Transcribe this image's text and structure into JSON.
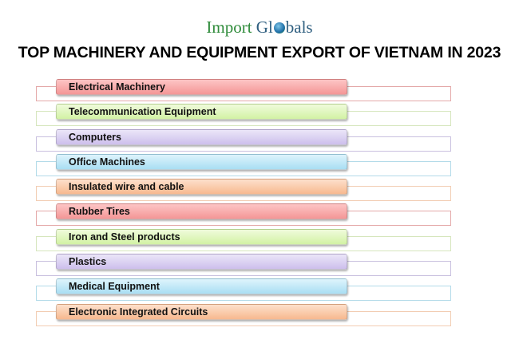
{
  "logo": {
    "part1": "Import",
    "part2a": "Gl",
    "part2b": "bals"
  },
  "title": "TOP MACHINERY AND EQUIPMENT EXPORT OF VIETNAM IN 2023",
  "items": [
    {
      "label": "Electrical Machinery",
      "color": "red"
    },
    {
      "label": "Telecommunication Equipment",
      "color": "green"
    },
    {
      "label": "Computers",
      "color": "purple"
    },
    {
      "label": "Office Machines",
      "color": "blue"
    },
    {
      "label": "Insulated wire and cable",
      "color": "orange"
    },
    {
      "label": "Rubber Tires",
      "color": "red"
    },
    {
      "label": "Iron and Steel products",
      "color": "green"
    },
    {
      "label": "Plastics",
      "color": "purple"
    },
    {
      "label": "Medical Equipment",
      "color": "blue"
    },
    {
      "label": "Electronic Integrated Circuits",
      "color": "orange"
    }
  ],
  "palette": {
    "red": {
      "fill": [
        "#fdc5c5",
        "#f49696"
      ],
      "border": "#e4a9a9"
    },
    "green": {
      "fill": [
        "#f0fbdc",
        "#d2f2a4"
      ],
      "border": "#d6e6bd"
    },
    "purple": {
      "fill": [
        "#ebe6f8",
        "#cdbfec"
      ],
      "border": "#c9c0df"
    },
    "blue": {
      "fill": [
        "#def4fc",
        "#a9def3"
      ],
      "border": "#b3dbe9"
    },
    "orange": {
      "fill": [
        "#fde0cc",
        "#f7b98f"
      ],
      "border": "#f2cdb3"
    }
  }
}
